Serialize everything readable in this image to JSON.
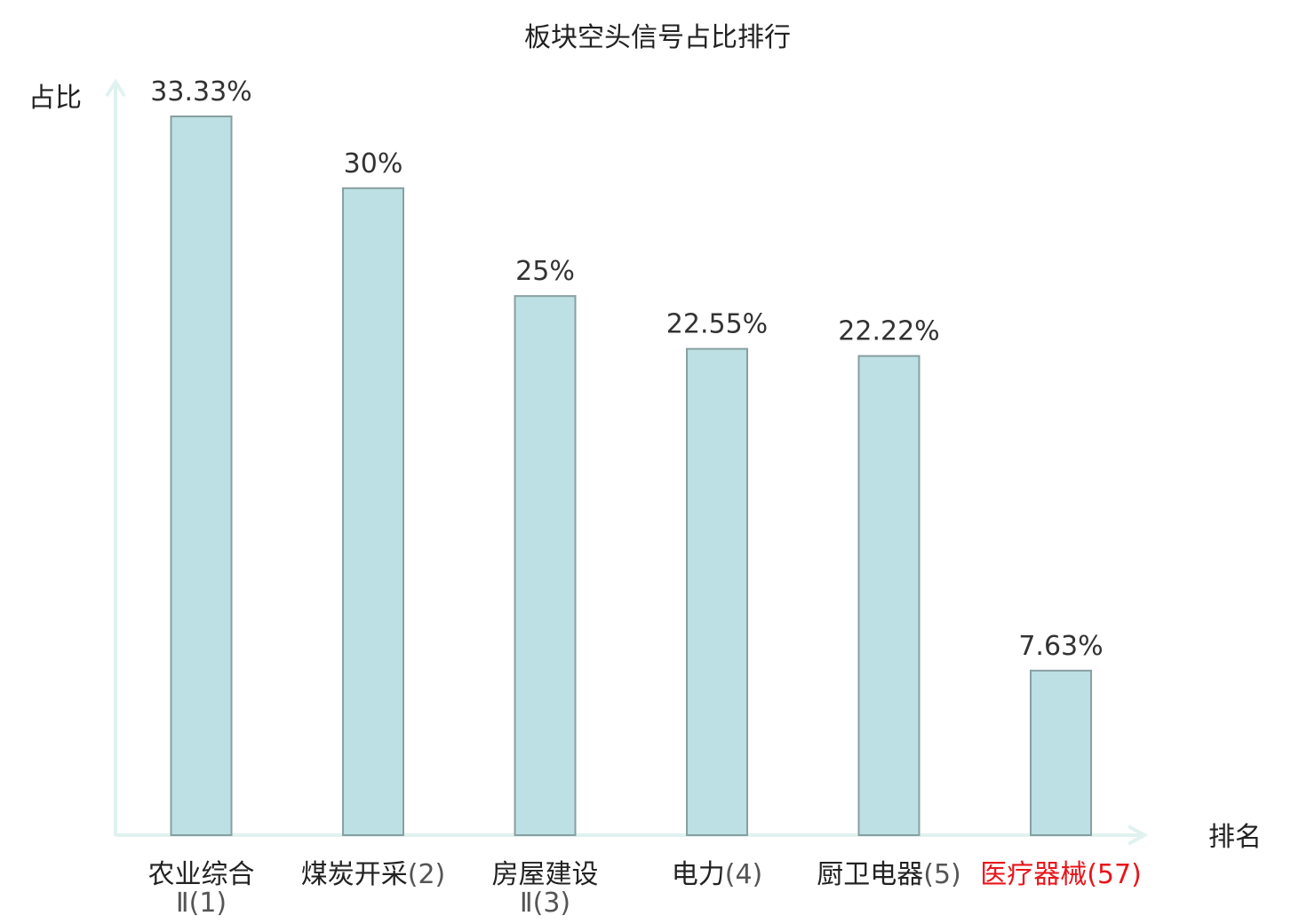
{
  "chart_data": {
    "type": "bar",
    "title": "板块空头信号占比排行",
    "xlabel": "排名",
    "ylabel": "占比",
    "ylim": [
      0,
      33.33
    ],
    "grid": false,
    "legend": "none",
    "categories": [
      {
        "name": "农业综合",
        "rank_line": "Ⅱ(1)",
        "highlight": false
      },
      {
        "name": "煤炭开采",
        "rank_line": "(2)",
        "highlight": false
      },
      {
        "name": "房屋建设",
        "rank_line": "Ⅱ(3)",
        "highlight": false
      },
      {
        "name": "电力",
        "rank_line": "(4)",
        "highlight": false
      },
      {
        "name": "厨卫电器",
        "rank_line": "(5)",
        "highlight": false
      },
      {
        "name": "医疗器械",
        "rank_line": "(57)",
        "highlight": true
      }
    ],
    "values": [
      33.33,
      30,
      25,
      22.55,
      22.22,
      7.63
    ],
    "value_labels": [
      "33.33%",
      "30%",
      "25%",
      "22.55%",
      "22.22%",
      "7.63%"
    ],
    "colors": {
      "bar_fill": "#bce0e3",
      "bar_stroke": "#889fa2",
      "axis": "#e0f2ef",
      "text": "#222222",
      "rank_text": "#555555",
      "highlight": "#e8151b"
    }
  }
}
